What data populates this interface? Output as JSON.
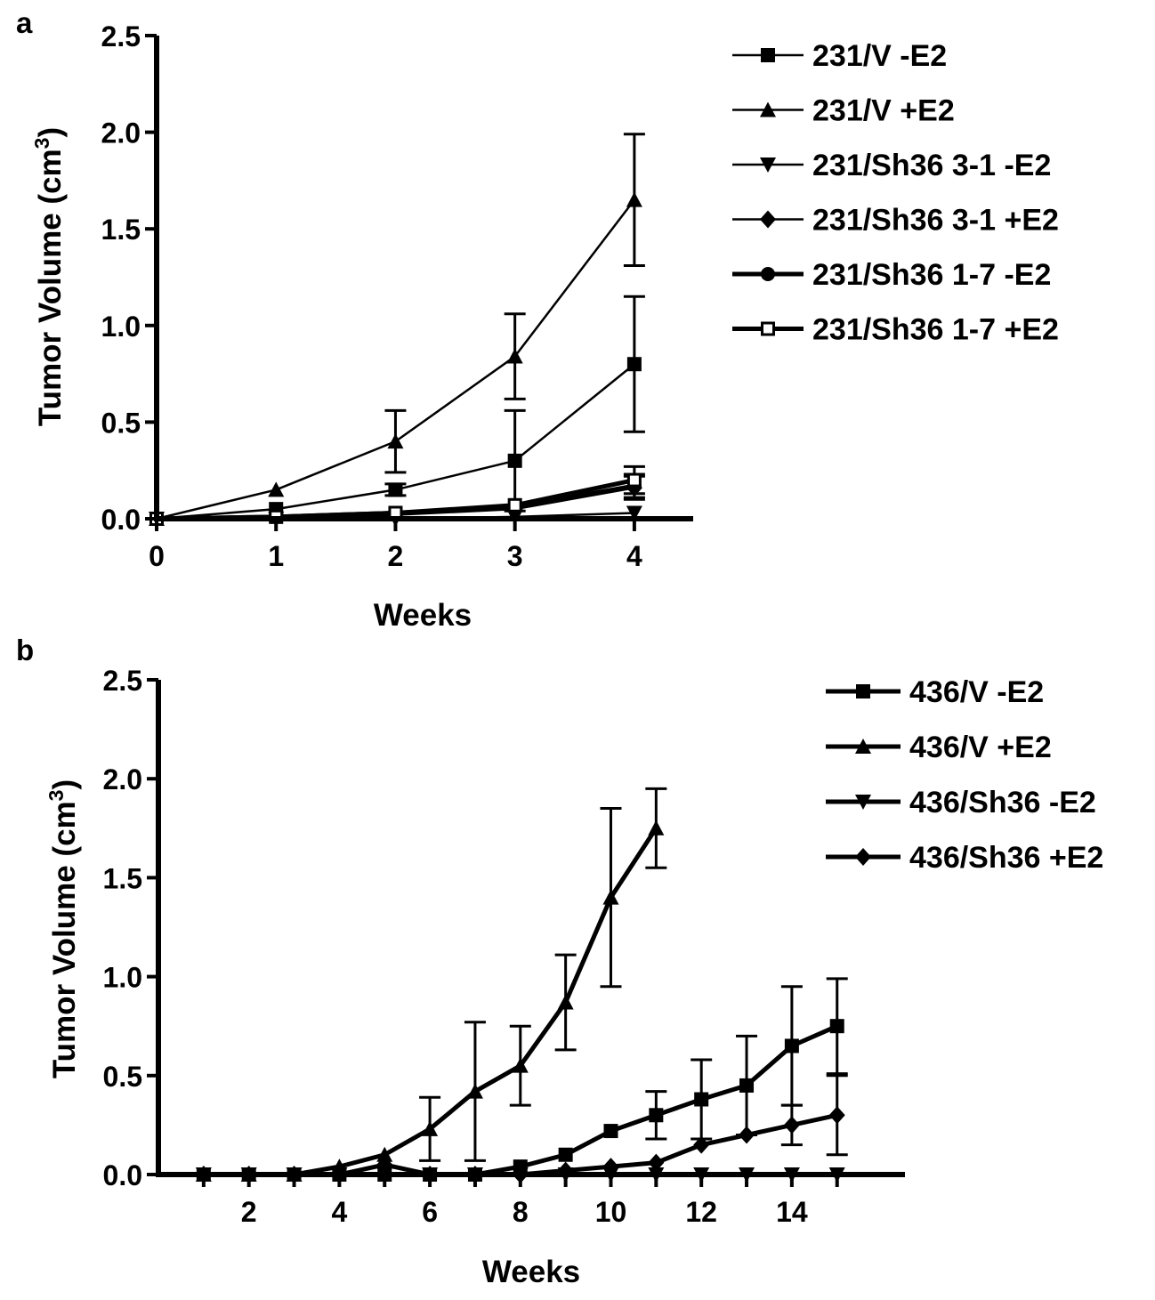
{
  "chart_data": [
    {
      "panel_label": "a",
      "type": "line",
      "xlabel": "Weeks",
      "ylabel": "Tumor Volume (cm",
      "ylabel_sup": "3",
      "ylabel_close": ")",
      "xlim": [
        0,
        4.5
      ],
      "ylim": [
        0,
        2.5
      ],
      "xticks": [
        0,
        1,
        2,
        3,
        4
      ],
      "yticks": [
        0.0,
        0.5,
        1.0,
        1.5,
        2.0,
        2.5
      ],
      "ytick_labels": [
        "0.0",
        "0.5",
        "1.0",
        "1.5",
        "2.0",
        "2.5"
      ],
      "legend_position": "top-right",
      "series": [
        {
          "name": "231/V -E2",
          "marker": "square-filled",
          "bold": false,
          "x": [
            0,
            1,
            2,
            3,
            4
          ],
          "y": [
            0,
            0.05,
            0.15,
            0.3,
            0.8
          ],
          "err": [
            0,
            0,
            0.03,
            0.26,
            0.35
          ]
        },
        {
          "name": "231/V +E2",
          "marker": "triangle-up",
          "bold": false,
          "x": [
            0,
            1,
            2,
            3,
            4
          ],
          "y": [
            0,
            0.15,
            0.4,
            0.84,
            1.65
          ],
          "err": [
            0,
            0,
            0.16,
            0.22,
            0.34
          ]
        },
        {
          "name": "231/Sh36 3-1 -E2",
          "marker": "triangle-down",
          "bold": false,
          "x": [
            0,
            1,
            2,
            3,
            4
          ],
          "y": [
            0,
            0.0,
            0.0,
            0.01,
            0.03
          ],
          "err": [
            0,
            0,
            0,
            0,
            0
          ]
        },
        {
          "name": "231/Sh36 3-1 +E2",
          "marker": "diamond",
          "bold": false,
          "x": [
            0,
            1,
            2,
            3,
            4
          ],
          "y": [
            0,
            0.01,
            0.02,
            0.05,
            0.16
          ],
          "err": [
            0,
            0,
            0,
            0,
            0.06
          ]
        },
        {
          "name": "231/Sh36 1-7 -E2",
          "marker": "circle-filled",
          "bold": true,
          "x": [
            0,
            1,
            2,
            3,
            4
          ],
          "y": [
            0,
            0.01,
            0.03,
            0.06,
            0.17
          ],
          "err": [
            0,
            0,
            0,
            0,
            0.06
          ]
        },
        {
          "name": "231/Sh36 1-7 +E2",
          "marker": "square-open",
          "bold": true,
          "x": [
            0,
            1,
            2,
            3,
            4
          ],
          "y": [
            0,
            0.01,
            0.03,
            0.07,
            0.2
          ],
          "err": [
            0,
            0,
            0,
            0,
            0.07
          ]
        }
      ]
    },
    {
      "panel_label": "b",
      "type": "line",
      "xlabel": "Weeks",
      "ylabel": "Tumor Volume (cm",
      "ylabel_sup": "3",
      "ylabel_close": ")",
      "xlim": [
        0,
        16.5
      ],
      "ylim": [
        0,
        2.5
      ],
      "xticks": [
        1,
        2,
        3,
        4,
        5,
        6,
        7,
        8,
        9,
        10,
        11,
        12,
        13,
        14,
        15
      ],
      "xtick_labels": [
        "",
        "2",
        "",
        "4",
        "",
        "6",
        "",
        "8",
        "",
        "10",
        "",
        "12",
        "",
        "14",
        ""
      ],
      "yticks": [
        0.0,
        0.5,
        1.0,
        1.5,
        2.0,
        2.5
      ],
      "ytick_labels": [
        "0.0",
        "0.5",
        "1.0",
        "1.5",
        "2.0",
        "2.5"
      ],
      "legend_position": "top-right",
      "series": [
        {
          "name": "436/V -E2",
          "marker": "square-filled",
          "bold": true,
          "x": [
            1,
            2,
            3,
            4,
            5,
            6,
            7,
            8,
            9,
            10,
            11,
            12,
            13,
            14,
            15
          ],
          "y": [
            0,
            0,
            0,
            0,
            0,
            0,
            0,
            0.04,
            0.1,
            0.22,
            0.3,
            0.38,
            0.45,
            0.65,
            0.75
          ],
          "err": [
            0,
            0,
            0,
            0,
            0,
            0,
            0,
            0,
            0,
            0,
            0.12,
            0.2,
            0.25,
            0.3,
            0.24
          ]
        },
        {
          "name": "436/V +E2",
          "marker": "triangle-up",
          "bold": true,
          "x": [
            1,
            2,
            3,
            4,
            5,
            6,
            7,
            8,
            9,
            10,
            11
          ],
          "y": [
            0,
            0,
            0,
            0.04,
            0.1,
            0.23,
            0.42,
            0.55,
            0.87,
            1.4,
            1.75
          ],
          "err": [
            0,
            0,
            0,
            0,
            0,
            0.16,
            0.35,
            0.2,
            0.24,
            0.45,
            0.2
          ]
        },
        {
          "name": "436/Sh36 -E2",
          "marker": "triangle-down",
          "bold": true,
          "x": [
            1,
            2,
            3,
            4,
            5,
            6,
            7,
            8,
            9,
            10,
            11,
            12,
            13,
            14,
            15
          ],
          "y": [
            0,
            0,
            0,
            0,
            0,
            0,
            0,
            0,
            0,
            0,
            0,
            0,
            0,
            0,
            0
          ],
          "err": [
            0,
            0,
            0,
            0,
            0,
            0,
            0,
            0,
            0,
            0,
            0,
            0,
            0,
            0,
            0
          ]
        },
        {
          "name": "436/Sh36 +E2",
          "marker": "diamond",
          "bold": true,
          "x": [
            1,
            2,
            3,
            4,
            5,
            6,
            7,
            8,
            9,
            10,
            11,
            12,
            13,
            14,
            15
          ],
          "y": [
            0,
            0,
            0,
            0,
            0.05,
            0,
            0,
            0,
            0.02,
            0.04,
            0.06,
            0.15,
            0.2,
            0.25,
            0.3
          ],
          "err": [
            0,
            0,
            0,
            0,
            0,
            0,
            0,
            0,
            0,
            0,
            0,
            0,
            0,
            0.1,
            0.2
          ]
        }
      ]
    }
  ]
}
